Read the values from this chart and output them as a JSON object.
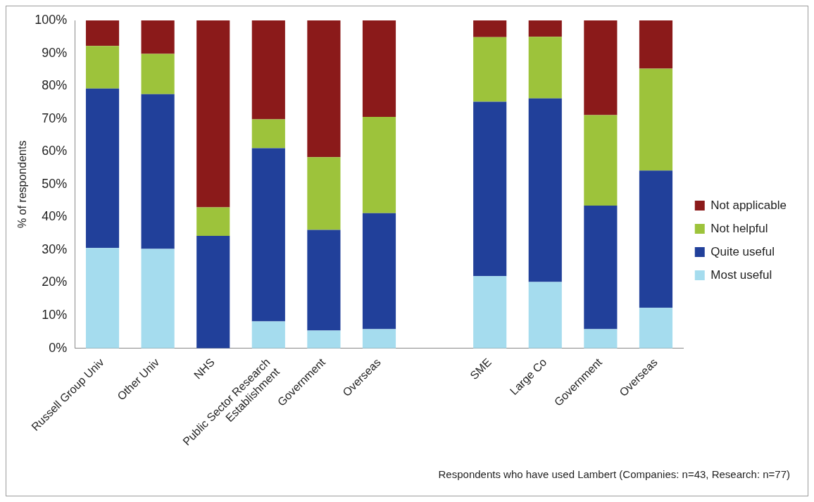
{
  "chart_data": {
    "type": "bar",
    "stacked": true,
    "ylabel": "% of respondents",
    "categories": [
      "Russell Group Univ",
      "Other Univ",
      "NHS",
      "Public Sector Research Establishment",
      "Government",
      "Overseas",
      null,
      "SME",
      "Large Co",
      "Government",
      "Overseas"
    ],
    "series": [
      {
        "name": "Most useful",
        "color": "#a5dcee",
        "values": [
          30.6,
          30.3,
          0,
          8.2,
          5.4,
          5.8,
          null,
          22,
          20.2,
          5.8,
          12.3
        ]
      },
      {
        "name": "Quite useful",
        "color": "#21409a",
        "values": [
          48.6,
          47.2,
          34.3,
          52.8,
          30.7,
          35.4,
          null,
          53.2,
          56,
          37.7,
          41.9
        ]
      },
      {
        "name": "Not helpful",
        "color": "#9dc33b",
        "values": [
          13,
          12.3,
          8.7,
          8.8,
          22.2,
          29.4,
          null,
          19.7,
          18.8,
          27.6,
          31.1
        ]
      },
      {
        "name": "Not applicable",
        "color": "#8b1a1a",
        "values": [
          7.8,
          10.2,
          57,
          30.2,
          41.7,
          29.4,
          null,
          5.1,
          5,
          28.9,
          14.7
        ]
      }
    ],
    "ylim": [
      0,
      100
    ],
    "yticks": [
      {
        "value": 0,
        "label": "0%"
      },
      {
        "value": 10,
        "label": "10%"
      },
      {
        "value": 20,
        "label": "20%"
      },
      {
        "value": 30,
        "label": "30%"
      },
      {
        "value": 40,
        "label": "40%"
      },
      {
        "value": 50,
        "label": "50%"
      },
      {
        "value": 60,
        "label": "60%"
      },
      {
        "value": 70,
        "label": "70%"
      },
      {
        "value": 80,
        "label": "80%"
      },
      {
        "value": 90,
        "label": "90%"
      },
      {
        "value": 100,
        "label": "100%"
      }
    ],
    "grid": false,
    "legend": "right",
    "annotations": [
      "Respondents who have used Lambert (Companies: n=43, Research: n=77)"
    ]
  }
}
